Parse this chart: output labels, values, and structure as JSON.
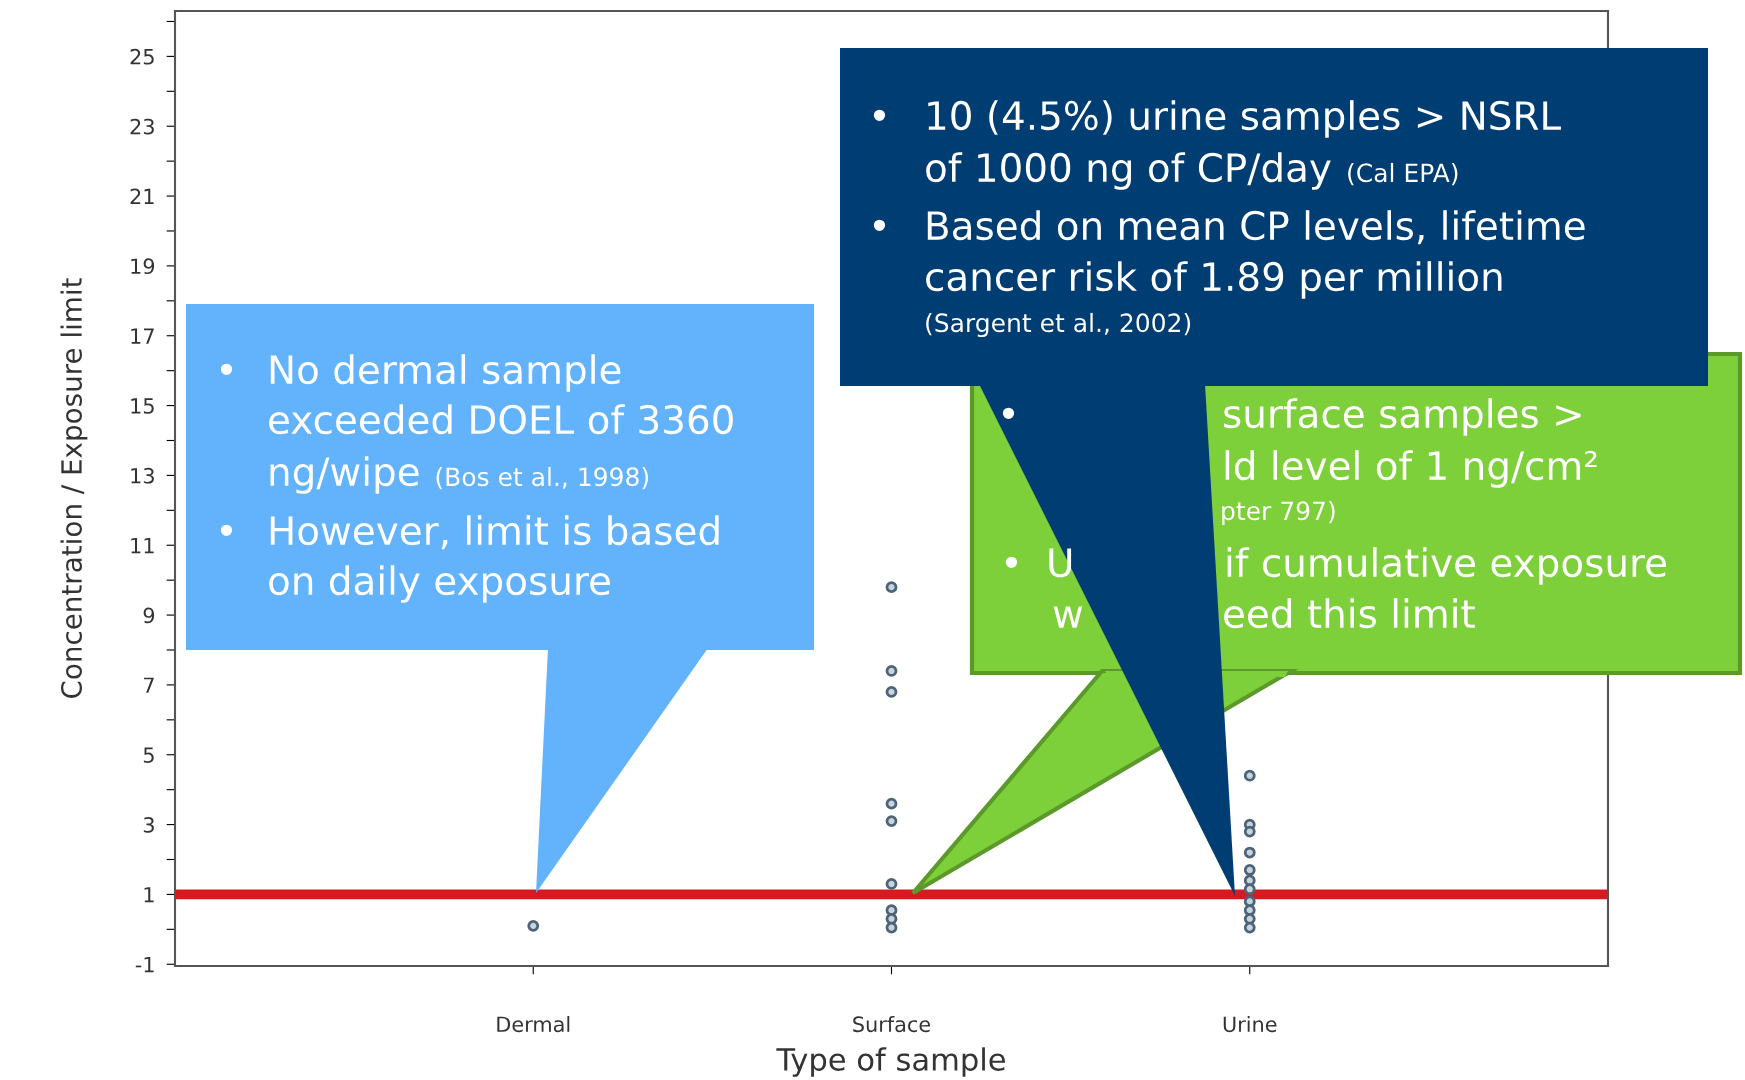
{
  "chart_data": {
    "type": "scatter",
    "categories": [
      "Dermal",
      "Surface",
      "Urine"
    ],
    "xlabel": "Type of sample",
    "ylabel": "Concentration / Exposure limit",
    "ylim": [
      -1.05,
      26.3
    ],
    "yticks": [
      -1,
      {
        "value": 0,
        "label": null
      },
      1,
      {
        "value": 2,
        "label": null
      },
      3,
      {
        "value": 4,
        "label": null
      },
      5,
      {
        "value": 6,
        "label": null
      },
      7,
      {
        "value": 8,
        "label": null
      },
      9,
      {
        "value": 10,
        "label": null
      },
      11,
      {
        "value": 12,
        "label": null
      },
      13,
      {
        "value": 14,
        "label": null
      },
      15,
      {
        "value": 16,
        "label": null
      },
      17,
      {
        "value": 18,
        "label": null
      },
      19,
      {
        "value": 20,
        "label": null
      },
      21,
      {
        "value": 22,
        "label": null
      },
      23,
      {
        "value": 24,
        "label": null
      },
      25,
      {
        "value": 26,
        "label": null
      }
    ],
    "marker": "circle",
    "grid": false,
    "legend": false,
    "series": [
      {
        "color": "#4d6478",
        "x": [
          "Dermal",
          "Surface",
          "Surface",
          "Surface",
          "Surface",
          "Surface",
          "Surface",
          "Surface",
          "Surface",
          "Surface",
          "Urine",
          "Urine",
          "Urine",
          "Urine",
          "Urine",
          "Urine",
          "Urine",
          "Urine",
          "Urine",
          "Urine",
          "Urine"
        ],
        "values": [
          0.1,
          9.8,
          7.4,
          6.8,
          3.6,
          3.1,
          1.3,
          0.55,
          0.3,
          0.05,
          4.4,
          3.0,
          2.8,
          2.2,
          1.7,
          1.4,
          1.15,
          0.8,
          0.55,
          0.3,
          0.05
        ]
      }
    ],
    "ref_lines": [
      {
        "axis": "y",
        "value": 1,
        "color": "#d71920"
      }
    ],
    "annotations": [
      "•",
      "No dermal sample",
      "exceeded DOEL of 3360",
      "ng/wipe",
      "(Bos et al., 1998)",
      "•",
      "However, limit is based",
      "on daily exposure",
      "•",
      "surface samples >",
      "ld level of 1 ng/cm²",
      "pter 797)",
      "•",
      "U",
      "if cumulative exposure",
      "w",
      "eed this limit",
      "•",
      "10 (4.5%) urine samples > NSRL",
      "of 1000 ng of CP/day",
      "(Cal EPA)",
      "•",
      "Based on mean CP levels, lifetime",
      "cancer risk of 1.89 per million",
      "(Sargent et al., 2002)"
    ]
  }
}
